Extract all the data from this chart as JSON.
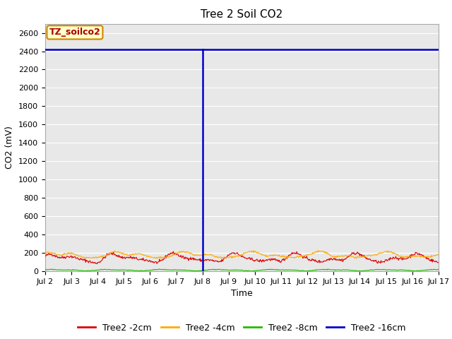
{
  "title": "Tree 2 Soil CO2",
  "ylabel": "CO2 (mV)",
  "xlabel": "Time",
  "ylim": [
    0,
    2700
  ],
  "yticks": [
    0,
    200,
    400,
    600,
    800,
    1000,
    1200,
    1400,
    1600,
    1800,
    2000,
    2200,
    2400,
    2600
  ],
  "x_tick_labels": [
    "Jul 2",
    "Jul 3",
    "Jul 4",
    "Jul 5",
    "Jul 6",
    "Jul 7",
    "Jul 8",
    "Jul 9",
    "Jul 10",
    "Jul 11",
    "Jul 12",
    "Jul 13",
    "Jul 14",
    "Jul 15",
    "Jul 16",
    "Jul 17"
  ],
  "bg_color": "#e8e8e8",
  "colors": {
    "red": "#dd0000",
    "orange": "#ffaa00",
    "green": "#22bb00",
    "blue": "#0000cc"
  },
  "legend_labels": [
    "Tree2 -2cm",
    "Tree2 -4cm",
    "Tree2 -8cm",
    "Tree2 -16cm"
  ],
  "legend_colors": [
    "#dd0000",
    "#ffaa00",
    "#22bb00",
    "#0000cc"
  ],
  "annotation_label": "TZ_soilco2",
  "annotation_bg": "#ffffcc",
  "annotation_border": "#cc8800",
  "annotation_text_color": "#aa0000",
  "blue_flat_value": 2420,
  "blue_vline_day": 6,
  "red_base": 140,
  "orange_base": 175,
  "green_base": 12,
  "num_points": 720,
  "title_fontsize": 11,
  "axis_label_fontsize": 9,
  "tick_fontsize": 8,
  "legend_fontsize": 9
}
